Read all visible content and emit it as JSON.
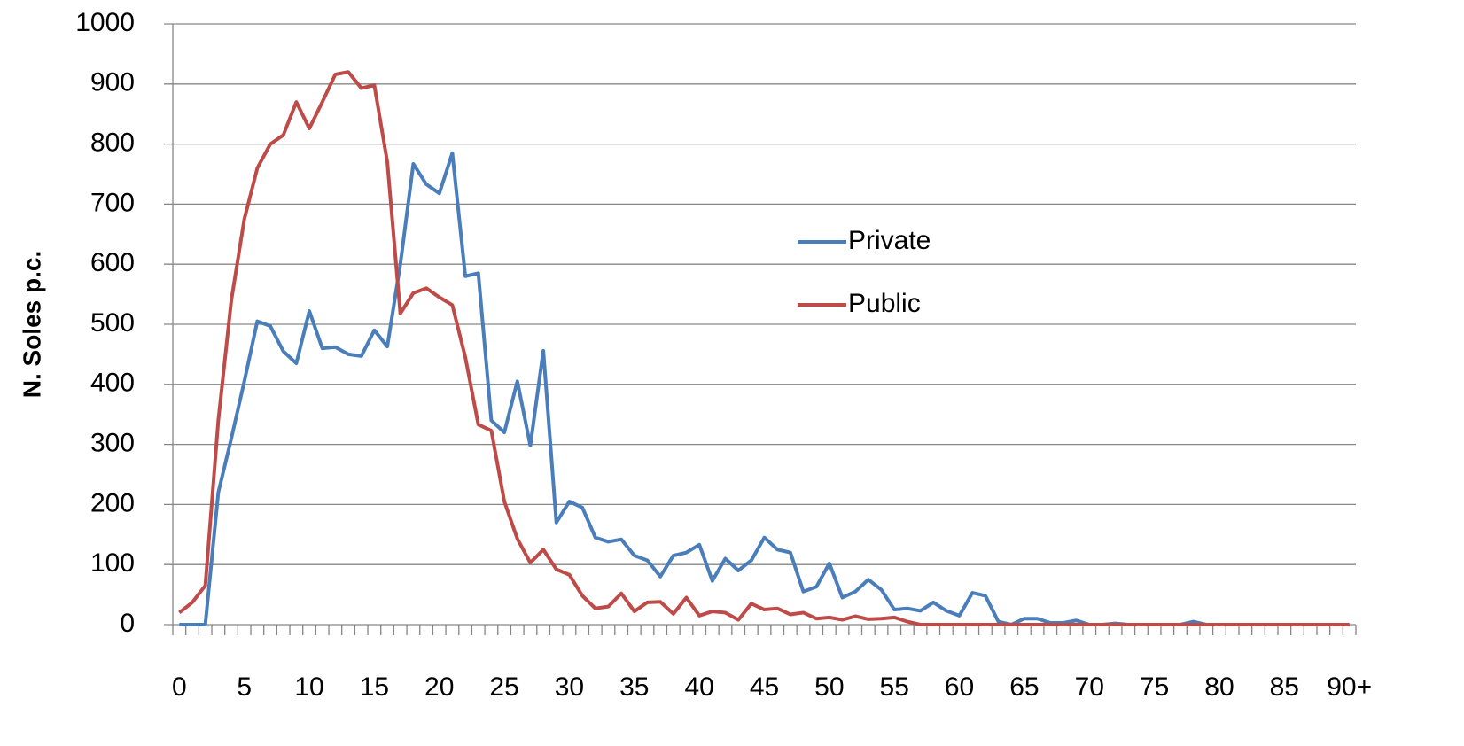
{
  "chart_data": {
    "type": "line",
    "y_label": "N. Soles p.c.",
    "categories": [
      "0",
      null,
      null,
      null,
      null,
      "5",
      null,
      null,
      null,
      null,
      "10",
      null,
      null,
      null,
      null,
      "15",
      null,
      null,
      null,
      null,
      "20",
      null,
      null,
      null,
      null,
      "25",
      null,
      null,
      null,
      null,
      "30",
      null,
      null,
      null,
      null,
      "35",
      null,
      null,
      null,
      null,
      "40",
      null,
      null,
      null,
      null,
      "45",
      null,
      null,
      null,
      null,
      "50",
      null,
      null,
      null,
      null,
      "55",
      null,
      null,
      null,
      null,
      "60",
      null,
      null,
      null,
      null,
      "65",
      null,
      null,
      null,
      null,
      "70",
      null,
      null,
      null,
      null,
      "75",
      null,
      null,
      null,
      null,
      "80",
      null,
      null,
      null,
      null,
      "85",
      null,
      null,
      null,
      null,
      "90+"
    ],
    "series": [
      {
        "name": "Private",
        "color": "#4a7ebb",
        "values": [
          0,
          0,
          0,
          220,
          310,
          405,
          505,
          497,
          455,
          435,
          522,
          460,
          462,
          450,
          447,
          490,
          463,
          600,
          767,
          733,
          718,
          785,
          580,
          585,
          340,
          320,
          405,
          298,
          456,
          170,
          205,
          195,
          145,
          138,
          142,
          115,
          107,
          80,
          115,
          120,
          133,
          73,
          110,
          90,
          107,
          145,
          125,
          120,
          55,
          63,
          102,
          45,
          55,
          75,
          58,
          25,
          27,
          23,
          37,
          23,
          15,
          53,
          48,
          5,
          0,
          10,
          10,
          3,
          3,
          7,
          0,
          0,
          2,
          0,
          0,
          0,
          0,
          0,
          5,
          0,
          0,
          0,
          0,
          0,
          0,
          0,
          0,
          0,
          0,
          0,
          0
        ]
      },
      {
        "name": "Public",
        "color": "#be4b48",
        "values": [
          20,
          37,
          65,
          340,
          540,
          675,
          760,
          800,
          815,
          870,
          826,
          870,
          916,
          920,
          893,
          898,
          770,
          518,
          552,
          560,
          545,
          532,
          445,
          333,
          323,
          205,
          143,
          103,
          125,
          92,
          83,
          48,
          27,
          30,
          52,
          22,
          37,
          38,
          18,
          45,
          15,
          22,
          20,
          8,
          35,
          25,
          27,
          17,
          20,
          10,
          12,
          8,
          14,
          9,
          10,
          12,
          5,
          0,
          0,
          0,
          0,
          0,
          0,
          0,
          0,
          0,
          0,
          0,
          0,
          0,
          0,
          0,
          0,
          0,
          0,
          0,
          0,
          0,
          0,
          0,
          0,
          0,
          0,
          0,
          0,
          0,
          0,
          0,
          0,
          0,
          0
        ]
      }
    ],
    "ylim": [
      0,
      1000
    ],
    "yticks": [
      0,
      100,
      200,
      300,
      400,
      500,
      600,
      700,
      800,
      900,
      1000
    ],
    "grid": true,
    "legend": "right"
  }
}
